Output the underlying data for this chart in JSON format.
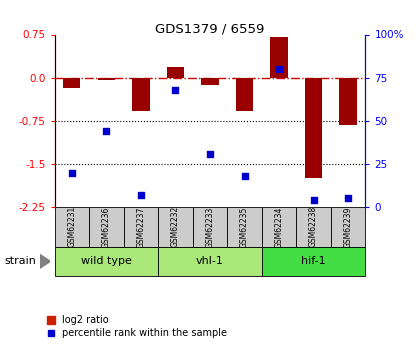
{
  "title": "GDS1379 / 6559",
  "samples": [
    "GSM62231",
    "GSM62236",
    "GSM62237",
    "GSM62232",
    "GSM62233",
    "GSM62235",
    "GSM62234",
    "GSM62238",
    "GSM62239"
  ],
  "log2_ratio": [
    -0.18,
    -0.04,
    -0.58,
    0.18,
    -0.13,
    -0.58,
    0.7,
    -1.75,
    -0.82
  ],
  "percentile_rank": [
    20,
    44,
    7,
    68,
    31,
    18,
    80,
    4,
    5
  ],
  "group_colors": [
    "#aae87a",
    "#aae87a",
    "#44dd44"
  ],
  "group_labels": [
    "wild type",
    "vhl-1",
    "hif-1"
  ],
  "group_ranges": [
    [
      0,
      3
    ],
    [
      3,
      6
    ],
    [
      6,
      9
    ]
  ],
  "ylim_left": [
    -2.25,
    0.75
  ],
  "ylim_right": [
    0,
    100
  ],
  "yticks_left": [
    0.75,
    0.0,
    -0.75,
    -1.5,
    -2.25
  ],
  "yticks_right": [
    100,
    75,
    50,
    25,
    0
  ],
  "bar_color": "#990000",
  "dot_color": "#0000CC",
  "hline_color": "#CC0000",
  "sample_box_color": "#cccccc",
  "legend_bar_color": "#cc2200",
  "legend_dot_color": "#0000cc"
}
